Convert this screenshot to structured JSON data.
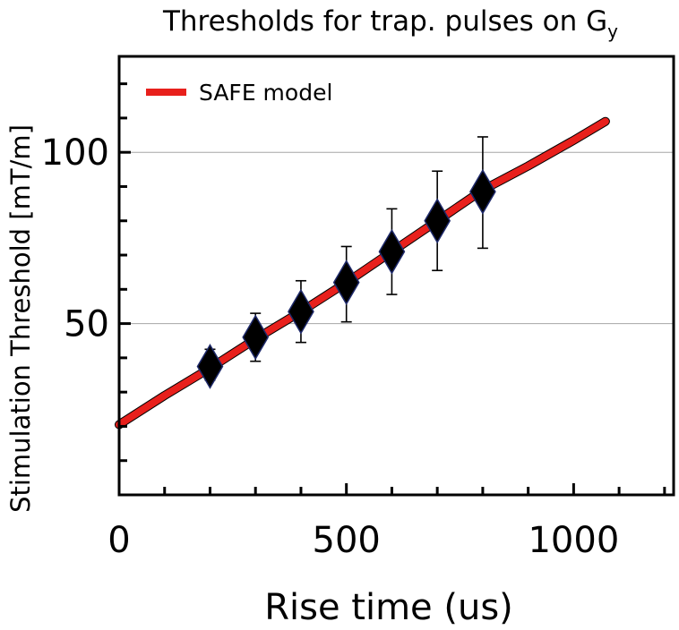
{
  "chart_data": {
    "type": "line",
    "title": "Thresholds for trap. pulses on G",
    "title_subscript": "y",
    "xlabel": "Rise time (us)",
    "ylabel": "Stimulation Threshold [mT/m]",
    "xlim": [
      0,
      1220
    ],
    "ylim": [
      0,
      128
    ],
    "x_ticks": [
      0,
      500,
      1000
    ],
    "y_ticks": [
      50,
      100
    ],
    "y_gridlines": [
      50,
      100
    ],
    "legend_position": "top-left",
    "series": [
      {
        "name": "SAFE model",
        "kind": "line",
        "color": "#e8201c",
        "x": [
          0,
          100,
          200,
          300,
          400,
          500,
          600,
          700,
          800,
          900,
          1000,
          1070
        ],
        "y": [
          20.5,
          29,
          37,
          45.5,
          53.5,
          62,
          71,
          80,
          89,
          96,
          103.5,
          109
        ]
      },
      {
        "kind": "scatter",
        "marker": "diamond",
        "color": "#000000",
        "x": [
          200,
          300,
          400,
          500,
          600,
          700,
          800
        ],
        "y": [
          37.5,
          46,
          53.5,
          62,
          71,
          80,
          88.5
        ],
        "err_low": [
          33.5,
          39,
          44.5,
          50.5,
          58.5,
          65.5,
          72
        ],
        "err_high": [
          42.5,
          53,
          62.5,
          72.5,
          83.5,
          94.5,
          104.5
        ]
      }
    ]
  }
}
